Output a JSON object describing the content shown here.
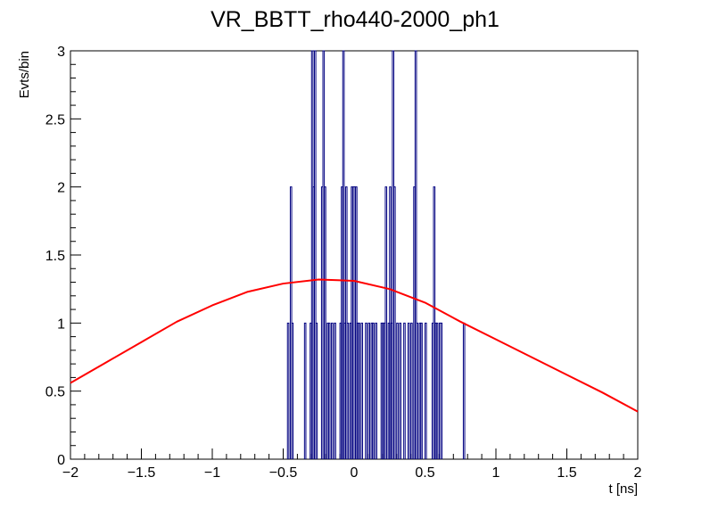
{
  "chart_data": {
    "type": "histogram",
    "title": "VR_BBTT_rho440-2000_ph1",
    "xlabel": "t [ns]",
    "ylabel": "Evts/bin",
    "xlim": [
      -2,
      2
    ],
    "ylim": [
      0,
      3
    ],
    "x_ticks": [
      -2,
      -1.5,
      -1,
      -0.5,
      0,
      0.5,
      1,
      1.5,
      2
    ],
    "x_tick_labels": [
      "−2",
      "−1.5",
      "−1",
      "−0.5",
      "0",
      "0.5",
      "1",
      "1.5",
      "2"
    ],
    "y_ticks": [
      0,
      0.5,
      1,
      1.5,
      2,
      2.5,
      3
    ],
    "y_tick_labels": [
      "0",
      "0.5",
      "1",
      "1.5",
      "2",
      "2.5",
      "3"
    ],
    "grid": false,
    "series": [
      {
        "type": "step",
        "color": "#000080",
        "bin_width": 0.01,
        "bins": [
          [
            -0.47,
            1
          ],
          [
            -0.45,
            2
          ],
          [
            -0.44,
            1
          ],
          [
            -0.35,
            1
          ],
          [
            -0.31,
            1
          ],
          [
            -0.3,
            3
          ],
          [
            -0.29,
            2
          ],
          [
            -0.28,
            3
          ],
          [
            -0.27,
            1
          ],
          [
            -0.23,
            2
          ],
          [
            -0.22,
            3
          ],
          [
            -0.21,
            2
          ],
          [
            -0.19,
            1
          ],
          [
            -0.18,
            1
          ],
          [
            -0.16,
            1
          ],
          [
            -0.14,
            1
          ],
          [
            -0.1,
            1
          ],
          [
            -0.09,
            2
          ],
          [
            -0.08,
            3
          ],
          [
            -0.07,
            1
          ],
          [
            -0.06,
            2
          ],
          [
            -0.05,
            1
          ],
          [
            -0.03,
            1
          ],
          [
            -0.02,
            2
          ],
          [
            -0.01,
            2
          ],
          [
            0.0,
            2
          ],
          [
            0.01,
            2
          ],
          [
            0.02,
            1
          ],
          [
            0.03,
            1
          ],
          [
            0.05,
            1
          ],
          [
            0.08,
            1
          ],
          [
            0.1,
            1
          ],
          [
            0.12,
            1
          ],
          [
            0.13,
            1
          ],
          [
            0.15,
            1
          ],
          [
            0.19,
            1
          ],
          [
            0.2,
            1
          ],
          [
            0.21,
            1
          ],
          [
            0.22,
            2
          ],
          [
            0.24,
            1
          ],
          [
            0.25,
            2
          ],
          [
            0.26,
            1
          ],
          [
            0.27,
            3
          ],
          [
            0.28,
            2
          ],
          [
            0.3,
            1
          ],
          [
            0.32,
            1
          ],
          [
            0.35,
            1
          ],
          [
            0.38,
            1
          ],
          [
            0.4,
            1
          ],
          [
            0.42,
            2
          ],
          [
            0.43,
            3
          ],
          [
            0.44,
            1
          ],
          [
            0.46,
            1
          ],
          [
            0.47,
            1
          ],
          [
            0.5,
            1
          ],
          [
            0.55,
            1
          ],
          [
            0.56,
            2
          ],
          [
            0.57,
            1
          ],
          [
            0.58,
            1
          ],
          [
            0.6,
            1
          ],
          [
            0.61,
            1
          ],
          [
            0.77,
            1
          ]
        ]
      },
      {
        "type": "line",
        "color": "#ff0000",
        "x": [
          -2,
          -1.75,
          -1.5,
          -1.25,
          -1,
          -0.75,
          -0.5,
          -0.25,
          0,
          0.25,
          0.5,
          0.75,
          1,
          1.25,
          1.5,
          1.75,
          2
        ],
        "y": [
          0.56,
          0.71,
          0.86,
          1.01,
          1.13,
          1.23,
          1.29,
          1.32,
          1.31,
          1.25,
          1.15,
          1.01,
          0.88,
          0.75,
          0.62,
          0.49,
          0.35
        ]
      }
    ]
  }
}
